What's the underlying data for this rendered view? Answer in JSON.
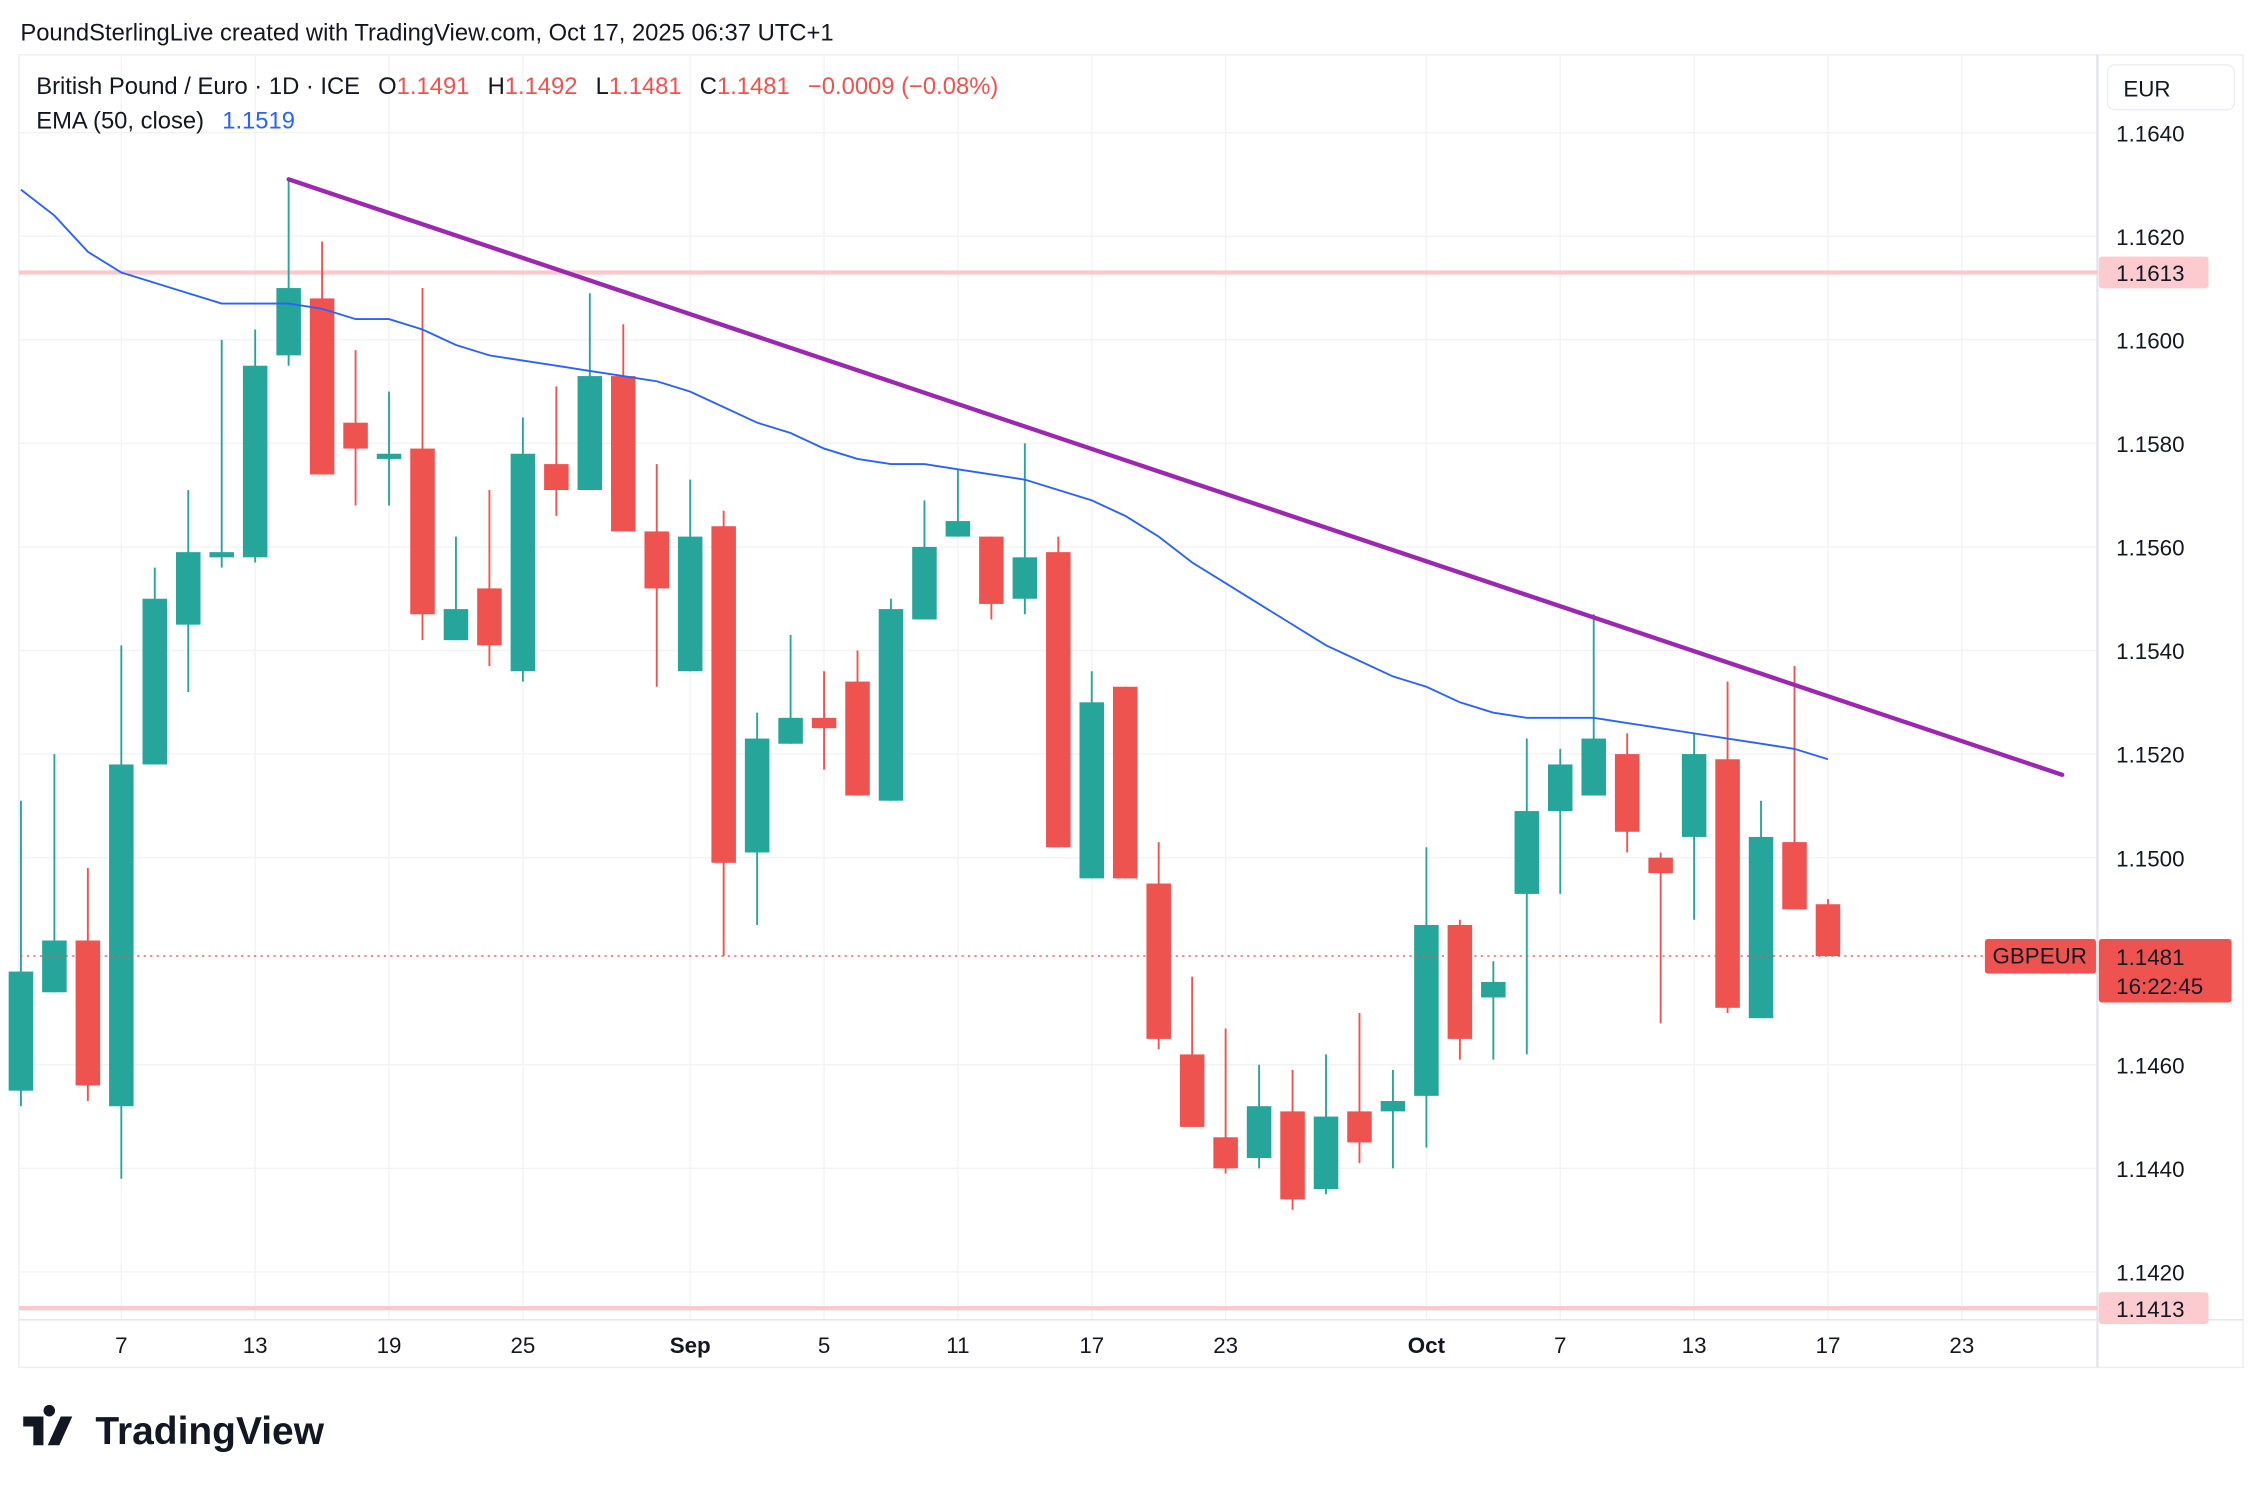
{
  "attribution": "PoundSterlingLive created with TradingView.com, Oct 17, 2025 06:37 UTC+1",
  "legend": {
    "symbol": "British Pound / Euro · 1D · ICE",
    "o_label": "O",
    "o": "1.1491",
    "h_label": "H",
    "h": "1.1492",
    "l_label": "L",
    "l": "1.1481",
    "c_label": "C",
    "c": "1.1481",
    "change": "−0.0009 (−0.08%)",
    "ema_label": "EMA (50, close)",
    "ema_value": "1.1519"
  },
  "currency": "EUR",
  "last_price": {
    "symbol": "GBPEUR",
    "price": "1.1481",
    "countdown": "16:22:45"
  },
  "logo": "TradingView",
  "colors": {
    "up": "#26a69a",
    "down": "#ef5350",
    "ema": "#2962ff",
    "trendline": "#9c27b0",
    "hline": "#f9c9cc",
    "hline_label": "#fccbcf",
    "legend_values": "#ef5350",
    "ema_value": "#2962ff"
  },
  "chart_data": {
    "type": "candlestick",
    "title": "",
    "ylim": [
      1.1405,
      1.1655
    ],
    "grid": true,
    "y_ticks": [
      "1.1640",
      "1.1620",
      "1.1600",
      "1.1580",
      "1.1560",
      "1.1540",
      "1.1520",
      "1.1500",
      "1.1460",
      "1.1440",
      "1.1420"
    ],
    "x_ticks": [
      {
        "label": "7",
        "date": "2025-08-07"
      },
      {
        "label": "13",
        "date": "2025-08-13"
      },
      {
        "label": "19",
        "date": "2025-08-19"
      },
      {
        "label": "25",
        "date": "2025-08-25"
      },
      {
        "label": "Sep",
        "date": "2025-09-01",
        "bold": true
      },
      {
        "label": "5",
        "date": "2025-09-05"
      },
      {
        "label": "11",
        "date": "2025-09-11"
      },
      {
        "label": "17",
        "date": "2025-09-17"
      },
      {
        "label": "23",
        "date": "2025-09-23"
      },
      {
        "label": "Oct",
        "date": "2025-10-01",
        "bold": true
      },
      {
        "label": "7",
        "date": "2025-10-07"
      },
      {
        "label": "13",
        "date": "2025-10-13"
      },
      {
        "label": "17",
        "date": "2025-10-17"
      },
      {
        "label": "23",
        "date": "2025-10-23"
      }
    ],
    "candles_columns": [
      "date",
      "open",
      "high",
      "low",
      "close"
    ],
    "candles": [
      [
        "2025-08-04",
        1.1455,
        1.1511,
        1.1452,
        1.1478
      ],
      [
        "2025-08-05",
        1.1474,
        1.152,
        1.1474,
        1.1484
      ],
      [
        "2025-08-06",
        1.1484,
        1.1498,
        1.1453,
        1.1456
      ],
      [
        "2025-08-07",
        1.1452,
        1.1541,
        1.1438,
        1.1518
      ],
      [
        "2025-08-08",
        1.1518,
        1.1556,
        1.1518,
        1.155
      ],
      [
        "2025-08-11",
        1.1545,
        1.1571,
        1.1532,
        1.1559
      ],
      [
        "2025-08-12",
        1.1558,
        1.16,
        1.1556,
        1.1559
      ],
      [
        "2025-08-13",
        1.1558,
        1.1602,
        1.1557,
        1.1595
      ],
      [
        "2025-08-14",
        1.1597,
        1.1631,
        1.1595,
        1.161
      ],
      [
        "2025-08-15",
        1.1608,
        1.1619,
        1.1574,
        1.1574
      ],
      [
        "2025-08-18",
        1.1584,
        1.1598,
        1.1568,
        1.1579
      ],
      [
        "2025-08-19",
        1.1577,
        1.159,
        1.1568,
        1.1578
      ],
      [
        "2025-08-20",
        1.1579,
        1.161,
        1.1542,
        1.1547
      ],
      [
        "2025-08-21",
        1.1542,
        1.1562,
        1.1542,
        1.1548
      ],
      [
        "2025-08-22",
        1.1552,
        1.1571,
        1.1537,
        1.1541
      ],
      [
        "2025-08-25",
        1.1536,
        1.1585,
        1.1534,
        1.1578
      ],
      [
        "2025-08-26",
        1.1576,
        1.1591,
        1.1566,
        1.1571
      ],
      [
        "2025-08-27",
        1.1571,
        1.1609,
        1.1571,
        1.1593
      ],
      [
        "2025-08-28",
        1.1593,
        1.1603,
        1.1563,
        1.1563
      ],
      [
        "2025-08-29",
        1.1563,
        1.1576,
        1.1533,
        1.1552
      ],
      [
        "2025-09-01",
        1.1536,
        1.1573,
        1.1536,
        1.1562
      ],
      [
        "2025-09-02",
        1.1564,
        1.1567,
        1.1481,
        1.1499
      ],
      [
        "2025-09-03",
        1.1501,
        1.1528,
        1.1487,
        1.1523
      ],
      [
        "2025-09-04",
        1.1522,
        1.1543,
        1.1522,
        1.1527
      ],
      [
        "2025-09-05",
        1.1527,
        1.1536,
        1.1517,
        1.1525
      ],
      [
        "2025-09-08",
        1.1534,
        1.154,
        1.1512,
        1.1512
      ],
      [
        "2025-09-09",
        1.1511,
        1.155,
        1.1511,
        1.1548
      ],
      [
        "2025-09-10",
        1.1546,
        1.1569,
        1.1546,
        1.156
      ],
      [
        "2025-09-11",
        1.1562,
        1.1575,
        1.1562,
        1.1565
      ],
      [
        "2025-09-12",
        1.1562,
        1.1562,
        1.1546,
        1.1549
      ],
      [
        "2025-09-15",
        1.155,
        1.158,
        1.1547,
        1.1558
      ],
      [
        "2025-09-16",
        1.1559,
        1.1562,
        1.1502,
        1.1502
      ],
      [
        "2025-09-17",
        1.1496,
        1.1536,
        1.1496,
        1.153
      ],
      [
        "2025-09-18",
        1.1533,
        1.1533,
        1.1496,
        1.1496
      ],
      [
        "2025-09-19",
        1.1495,
        1.1503,
        1.1463,
        1.1465
      ],
      [
        "2025-09-22",
        1.1462,
        1.1477,
        1.1448,
        1.1448
      ],
      [
        "2025-09-23",
        1.1446,
        1.1467,
        1.1439,
        1.144
      ],
      [
        "2025-09-24",
        1.1442,
        1.146,
        1.144,
        1.1452
      ],
      [
        "2025-09-25",
        1.1451,
        1.1459,
        1.1432,
        1.1434
      ],
      [
        "2025-09-26",
        1.1436,
        1.1462,
        1.1435,
        1.145
      ],
      [
        "2025-09-29",
        1.1451,
        1.147,
        1.1441,
        1.1445
      ],
      [
        "2025-09-30",
        1.1451,
        1.1459,
        1.144,
        1.1453
      ],
      [
        "2025-10-01",
        1.1454,
        1.1502,
        1.1444,
        1.1487
      ],
      [
        "2025-10-02",
        1.1487,
        1.1488,
        1.1461,
        1.1465
      ],
      [
        "2025-10-03",
        1.1473,
        1.148,
        1.1461,
        1.1476
      ],
      [
        "2025-10-06",
        1.1493,
        1.1523,
        1.1462,
        1.1509
      ],
      [
        "2025-10-07",
        1.1509,
        1.1521,
        1.1493,
        1.1518
      ],
      [
        "2025-10-08",
        1.1512,
        1.1547,
        1.1512,
        1.1523
      ],
      [
        "2025-10-09",
        1.152,
        1.1524,
        1.1501,
        1.1505
      ],
      [
        "2025-10-10",
        1.15,
        1.1501,
        1.1468,
        1.1497
      ],
      [
        "2025-10-13",
        1.1504,
        1.1524,
        1.1488,
        1.152
      ],
      [
        "2025-10-14",
        1.1519,
        1.1534,
        1.147,
        1.1471
      ],
      [
        "2025-10-15",
        1.1469,
        1.1511,
        1.1469,
        1.1504
      ],
      [
        "2025-10-16",
        1.1503,
        1.1537,
        1.149,
        1.149
      ],
      [
        "2025-10-17",
        1.1491,
        1.1492,
        1.1481,
        1.1481
      ]
    ],
    "ema50": [
      1.1629,
      1.1624,
      1.1617,
      1.1613,
      1.1611,
      1.1609,
      1.1607,
      1.1607,
      1.1607,
      1.1606,
      1.1604,
      1.1604,
      1.1602,
      1.1599,
      1.1597,
      1.1596,
      1.1595,
      1.1594,
      1.1593,
      1.1592,
      1.159,
      1.1587,
      1.1584,
      1.1582,
      1.1579,
      1.1577,
      1.1576,
      1.1576,
      1.1575,
      1.1574,
      1.1573,
      1.1571,
      1.1569,
      1.1566,
      1.1562,
      1.1557,
      1.1553,
      1.1549,
      1.1545,
      1.1541,
      1.1538,
      1.1535,
      1.1533,
      1.153,
      1.1528,
      1.1527,
      1.1527,
      1.1527,
      1.1526,
      1.1525,
      1.1524,
      1.1523,
      1.1522,
      1.1521,
      1.1519
    ],
    "trendline": {
      "from": {
        "date": "2025-08-14",
        "price": 1.1631
      },
      "to": {
        "date": "2025-10-28",
        "price": 1.1516
      }
    },
    "horizontal_lines": [
      "1.1613",
      "1.1413"
    ],
    "last_price": 1.1481
  }
}
